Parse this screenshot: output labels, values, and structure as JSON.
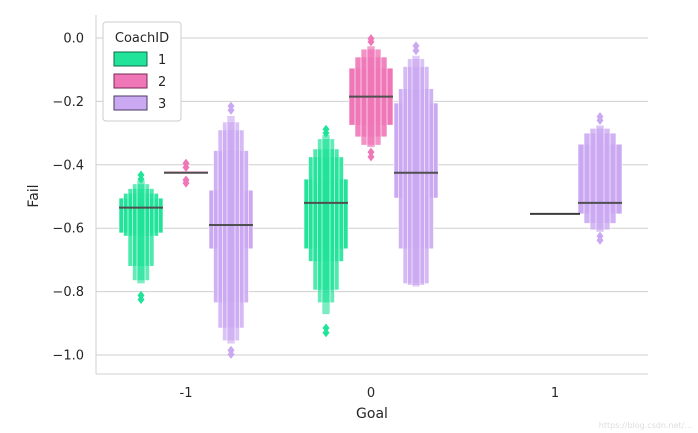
{
  "chart_data": {
    "type": "boxen",
    "xlabel": "Goal",
    "ylabel": "Fail",
    "categories": [
      "-1",
      "0",
      "1"
    ],
    "yticks": [
      "0.0",
      "−0.2",
      "−0.4",
      "−0.6",
      "−0.8",
      "−1.0"
    ],
    "ytick_values": [
      0.0,
      -0.2,
      -0.4,
      -0.6,
      -0.8,
      -1.0
    ],
    "ylim": [
      -1.06,
      0.07
    ],
    "grid": true,
    "legend": {
      "title": "CoachID",
      "placement": "top-left",
      "entries": [
        {
          "label": "1",
          "color": "#21e39a",
          "edge": "#0d6d49"
        },
        {
          "label": "2",
          "color": "#ef77b8",
          "edge": "#7a2a55"
        },
        {
          "label": "3",
          "color": "#cba9f2",
          "edge": "#4b3a63"
        }
      ]
    },
    "series": [
      {
        "name": "1",
        "color": "#21e39a",
        "groups": [
          {
            "category": "-1",
            "boxes": [
              [
                -0.505,
                -0.615
              ],
              [
                -0.49,
                -0.625
              ],
              [
                -0.475,
                -0.72
              ],
              [
                -0.46,
                -0.765
              ],
              [
                -0.448,
                -0.775
              ]
            ],
            "median": -0.535,
            "outliers": [
              -0.432,
              -0.445,
              -0.812,
              -0.825
            ]
          },
          {
            "category": "0",
            "boxes": [
              [
                -0.445,
                -0.665
              ],
              [
                -0.375,
                -0.705
              ],
              [
                -0.35,
                -0.795
              ],
              [
                -0.318,
                -0.835
              ],
              [
                -0.305,
                -0.872
              ]
            ],
            "median": -0.52,
            "outliers": [
              -0.288,
              -0.3,
              -0.915,
              -0.93
            ]
          }
        ]
      },
      {
        "name": "2",
        "color": "#ef77b8",
        "groups": [
          {
            "category": "-1",
            "boxes": [
              [
                -0.42,
                -0.428
              ]
            ],
            "median": -0.425,
            "outliers": [
              -0.395,
              -0.408,
              -0.448,
              -0.458
            ]
          },
          {
            "category": "0",
            "boxes": [
              [
                -0.095,
                -0.275
              ],
              [
                -0.06,
                -0.312
              ],
              [
                -0.035,
                -0.338
              ],
              [
                -0.025,
                -0.345
              ]
            ],
            "median": -0.185,
            "outliers": [
              -0.002,
              -0.012,
              -0.36,
              -0.375
            ]
          }
        ]
      },
      {
        "name": "3",
        "color": "#cba9f2",
        "groups": [
          {
            "category": "-1",
            "boxes": [
              [
                -0.48,
                -0.665
              ],
              [
                -0.355,
                -0.835
              ],
              [
                -0.29,
                -0.915
              ],
              [
                -0.265,
                -0.955
              ],
              [
                -0.245,
                -0.965
              ]
            ],
            "median": -0.59,
            "outliers": [
              -0.215,
              -0.228,
              -0.985,
              -0.998
            ]
          },
          {
            "category": "0",
            "boxes": [
              [
                -0.205,
                -0.505
              ],
              [
                -0.16,
                -0.665
              ],
              [
                -0.09,
                -0.775
              ],
              [
                -0.065,
                -0.78
              ],
              [
                -0.055,
                -0.785
              ]
            ],
            "median": -0.425,
            "outliers": [
              -0.025,
              -0.04
            ]
          },
          {
            "category": "1",
            "boxes": [
              [
                -0.335,
                -0.555
              ],
              [
                -0.3,
                -0.585
              ],
              [
                -0.285,
                -0.605
              ],
              [
                -0.275,
                -0.612
              ]
            ],
            "median": -0.52,
            "outliers": [
              -0.248,
              -0.26,
              -0.625,
              -0.638
            ]
          }
        ]
      }
    ],
    "lone_medians": [
      {
        "category": "1",
        "series": "2",
        "value": -0.555
      }
    ]
  },
  "watermark": "https://blog.csdn.net/..."
}
